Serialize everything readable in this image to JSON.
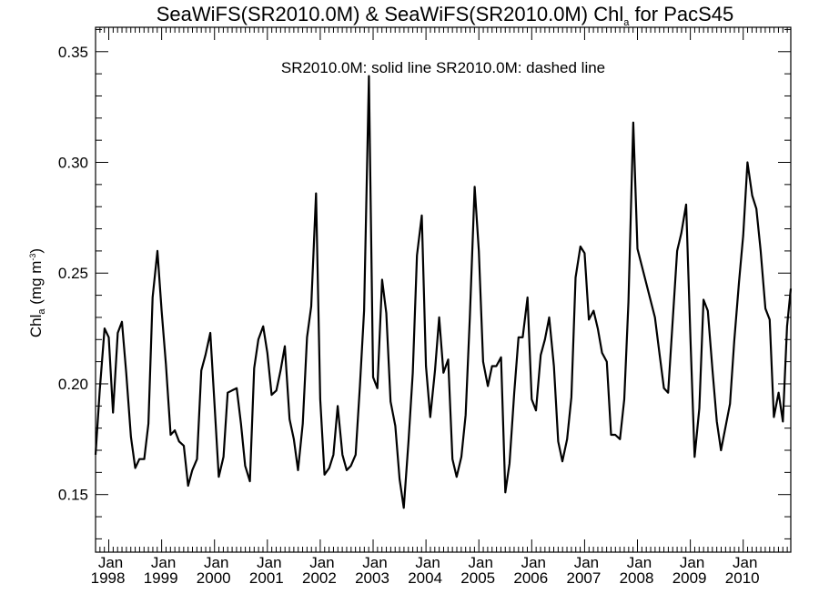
{
  "chart_data": {
    "type": "line",
    "title_main": "SeaWiFS(SR2010.0M) & SeaWiFS(SR2010.0M)  Chl",
    "title_sub": "a",
    "title_suffix": " for PacS45",
    "annotation": "SR2010.0M: solid line   SR2010.0M: dashed line",
    "ylabel_main": "Chl",
    "ylabel_sub": "a",
    "ylabel_unit": " (mg m",
    "ylabel_sup": "-3",
    "ylabel_close": ")",
    "ylim": [
      0.124,
      0.361
    ],
    "xlim": [
      1997.75,
      2010.9
    ],
    "yticks": [
      0.15,
      0.2,
      0.25,
      0.3,
      0.35
    ],
    "ytick_labels": [
      "0.15",
      "0.20",
      "0.25",
      "0.30",
      "0.35"
    ],
    "xticks": [
      {
        "pos": 1998.0,
        "month": "Jan",
        "year": "1998"
      },
      {
        "pos": 1999.0,
        "month": "Jan",
        "year": "1999"
      },
      {
        "pos": 2000.0,
        "month": "Jan",
        "year": "2000"
      },
      {
        "pos": 2001.0,
        "month": "Jan",
        "year": "2001"
      },
      {
        "pos": 2002.0,
        "month": "Jan",
        "year": "2002"
      },
      {
        "pos": 2003.0,
        "month": "Jan",
        "year": "2003"
      },
      {
        "pos": 2004.0,
        "month": "Jan",
        "year": "2004"
      },
      {
        "pos": 2005.0,
        "month": "Jan",
        "year": "2005"
      },
      {
        "pos": 2006.0,
        "month": "Jan",
        "year": "2006"
      },
      {
        "pos": 2007.0,
        "month": "Jan",
        "year": "2007"
      },
      {
        "pos": 2008.0,
        "month": "Jan",
        "year": "2008"
      },
      {
        "pos": 2009.0,
        "month": "Jan",
        "year": "2009"
      },
      {
        "pos": 2010.0,
        "month": "Jan",
        "year": "2010"
      }
    ],
    "grid": false,
    "series": [
      {
        "name": "SR2010.0M",
        "style": "solid",
        "color": "#000000",
        "x": [
          1997.75,
          1997.83,
          1997.92,
          1998.0,
          1998.08,
          1998.17,
          1998.25,
          1998.33,
          1998.42,
          1998.5,
          1998.58,
          1998.67,
          1998.75,
          1998.83,
          1998.92,
          1999.0,
          1999.08,
          1999.17,
          1999.25,
          1999.33,
          1999.42,
          1999.5,
          1999.58,
          1999.67,
          1999.75,
          1999.83,
          1999.92,
          2000.0,
          2000.08,
          2000.17,
          2000.25,
          2000.33,
          2000.42,
          2000.5,
          2000.58,
          2000.67,
          2000.75,
          2000.83,
          2000.92,
          2001.0,
          2001.08,
          2001.17,
          2001.25,
          2001.33,
          2001.42,
          2001.5,
          2001.58,
          2001.67,
          2001.75,
          2001.83,
          2001.92,
          2002.0,
          2002.08,
          2002.17,
          2002.25,
          2002.33,
          2002.42,
          2002.5,
          2002.58,
          2002.67,
          2002.75,
          2002.83,
          2002.92,
          2003.0,
          2003.08,
          2003.17,
          2003.25,
          2003.33,
          2003.42,
          2003.5,
          2003.58,
          2003.67,
          2003.75,
          2003.83,
          2003.92,
          2004.0,
          2004.08,
          2004.17,
          2004.25,
          2004.33,
          2004.42,
          2004.5,
          2004.58,
          2004.67,
          2004.75,
          2004.83,
          2004.92,
          2005.0,
          2005.08,
          2005.17,
          2005.25,
          2005.33,
          2005.42,
          2005.5,
          2005.58,
          2005.67,
          2005.75,
          2005.83,
          2005.92,
          2006.0,
          2006.08,
          2006.17,
          2006.25,
          2006.33,
          2006.42,
          2006.5,
          2006.58,
          2006.67,
          2006.75,
          2006.83,
          2006.92,
          2007.0,
          2007.08,
          2007.17,
          2007.25,
          2007.33,
          2007.42,
          2007.5,
          2007.58,
          2007.67,
          2007.75,
          2007.83,
          2007.92,
          2008.0,
          2008.33,
          2008.42,
          2008.5,
          2008.58,
          2008.75,
          2008.83,
          2008.92,
          2009.0,
          2009.08,
          2009.17,
          2009.25,
          2009.33,
          2009.42,
          2009.5,
          2009.58,
          2009.67,
          2009.75,
          2009.83,
          2009.92,
          2010.0,
          2010.08,
          2010.17,
          2010.25,
          2010.33,
          2010.42,
          2010.5,
          2010.58,
          2010.67,
          2010.75,
          2010.83,
          2010.9
        ],
        "y": [
          0.168,
          0.197,
          0.225,
          0.221,
          0.187,
          0.223,
          0.228,
          0.205,
          0.176,
          0.162,
          0.166,
          0.166,
          0.182,
          0.239,
          0.26,
          0.233,
          0.209,
          0.177,
          0.179,
          0.174,
          0.172,
          0.154,
          0.161,
          0.166,
          0.206,
          0.213,
          0.223,
          0.191,
          0.158,
          0.167,
          0.196,
          0.197,
          0.198,
          0.182,
          0.163,
          0.156,
          0.207,
          0.22,
          0.226,
          0.214,
          0.195,
          0.197,
          0.206,
          0.217,
          0.184,
          0.175,
          0.161,
          0.182,
          0.221,
          0.235,
          0.286,
          0.193,
          0.159,
          0.162,
          0.168,
          0.19,
          0.168,
          0.161,
          0.163,
          0.168,
          0.199,
          0.233,
          0.339,
          0.203,
          0.198,
          0.247,
          0.232,
          0.192,
          0.181,
          0.157,
          0.144,
          0.174,
          0.205,
          0.258,
          0.276,
          0.208,
          0.185,
          0.206,
          0.23,
          0.205,
          0.211,
          0.166,
          0.158,
          0.167,
          0.186,
          0.23,
          0.289,
          0.26,
          0.21,
          0.199,
          0.208,
          0.208,
          0.212,
          0.151,
          0.164,
          0.196,
          0.221,
          0.221,
          0.239,
          0.193,
          0.188,
          0.213,
          0.22,
          0.23,
          0.208,
          0.174,
          0.165,
          0.175,
          0.194,
          0.248,
          0.262,
          0.259,
          0.229,
          0.233,
          0.225,
          0.214,
          0.21,
          0.177,
          0.177,
          0.175,
          0.193,
          0.237,
          0.318,
          0.261,
          0.23,
          0.213,
          0.198,
          0.196,
          0.26,
          0.268,
          0.281,
          0.222,
          0.167,
          0.189,
          0.238,
          0.233,
          0.206,
          0.183,
          0.17,
          0.181,
          0.191,
          0.219,
          0.246,
          0.267,
          0.3,
          0.285,
          0.279,
          0.26,
          0.234,
          0.229,
          0.185,
          0.196,
          0.183,
          0.226,
          0.243
        ]
      }
    ]
  }
}
